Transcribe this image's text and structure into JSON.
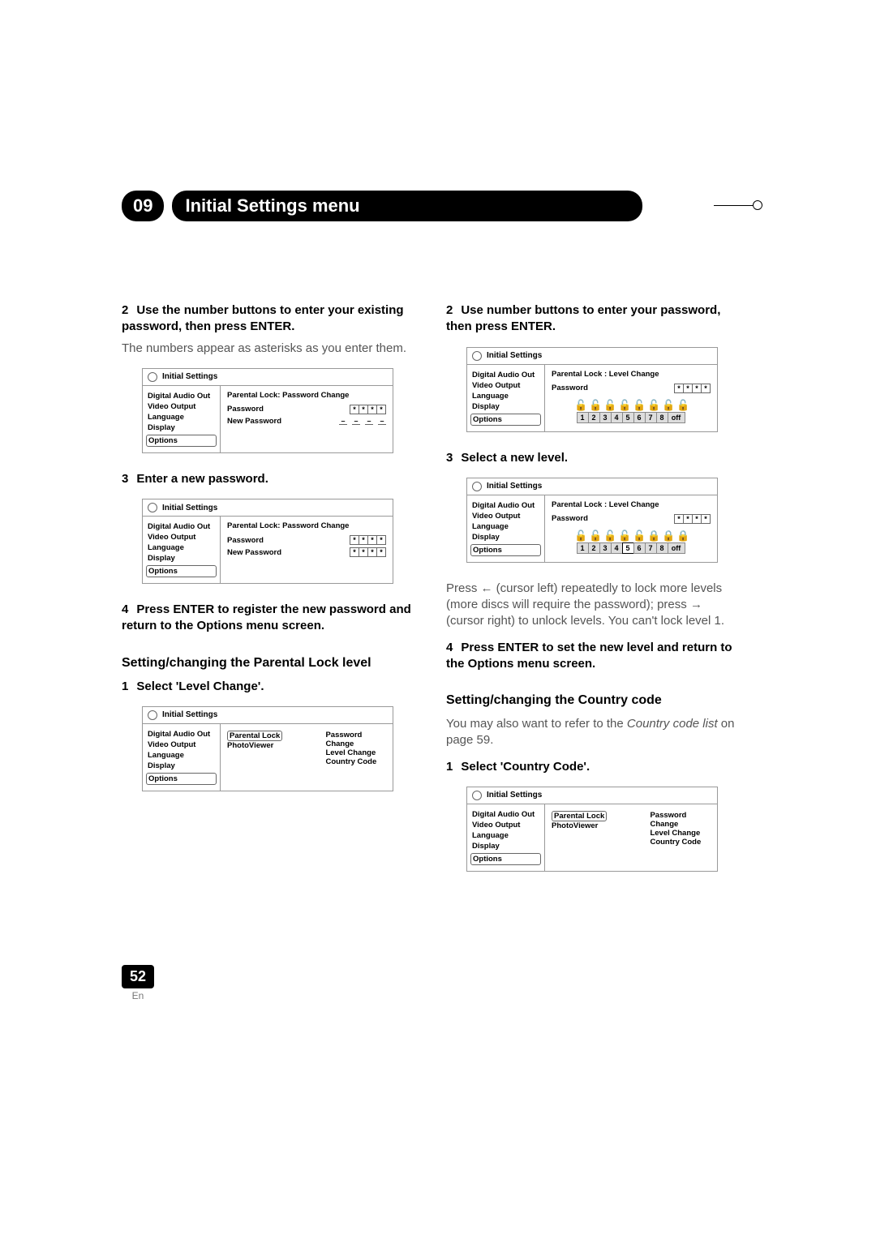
{
  "chapter": {
    "number": "09",
    "title": "Initial Settings menu"
  },
  "page": {
    "number": "52",
    "lang": "En"
  },
  "osd": {
    "title": "Initial Settings",
    "side_items": [
      "Digital Audio Out",
      "Video Output",
      "Language",
      "Display",
      "Options"
    ],
    "crumb_password": "Parental Lock: Password Change",
    "crumb_level": "Parental Lock : Level Change",
    "labels": {
      "password": "Password",
      "new_password": "New Password",
      "parental_lock": "Parental Lock",
      "photoviewer": "PhotoViewer",
      "password_change": "Password Change",
      "level_change": "Level Change",
      "country_code": "Country Code"
    },
    "level_numbers": [
      "1",
      "2",
      "3",
      "4",
      "5",
      "6",
      "7",
      "8",
      "off"
    ]
  },
  "left": {
    "s2a": "Use the number buttons to enter your existing password, then press ENTER.",
    "s2b": "The numbers appear as asterisks as you enter them.",
    "s3": "Enter a new password.",
    "s4": "Press ENTER to register the new password and return to the Options menu screen.",
    "h1": "Setting/changing the Parental Lock level",
    "s1b": "Select 'Level Change'."
  },
  "right": {
    "s2": "Use number buttons to enter your password, then press ENTER.",
    "s3": "Select a new level.",
    "p1a": "Press ",
    "p1b": " (cursor left) repeatedly to lock more levels (more discs will require the password); press ",
    "p1c": " (cursor right) to unlock levels. You can't lock level 1.",
    "s4": "Press ENTER to set the new level and return to the Options menu screen.",
    "h1": "Setting/changing the Country code",
    "p2a": "You may also want to refer to the ",
    "p2b": "Country code list",
    "p2c": " on page 59.",
    "s1b": "Select 'Country Code'."
  },
  "glyph": {
    "ast": "*",
    "dash": "–",
    "open_lock": "🔓",
    "closed_lock": "🔒",
    "arrow_left": "←",
    "arrow_right": "→"
  }
}
